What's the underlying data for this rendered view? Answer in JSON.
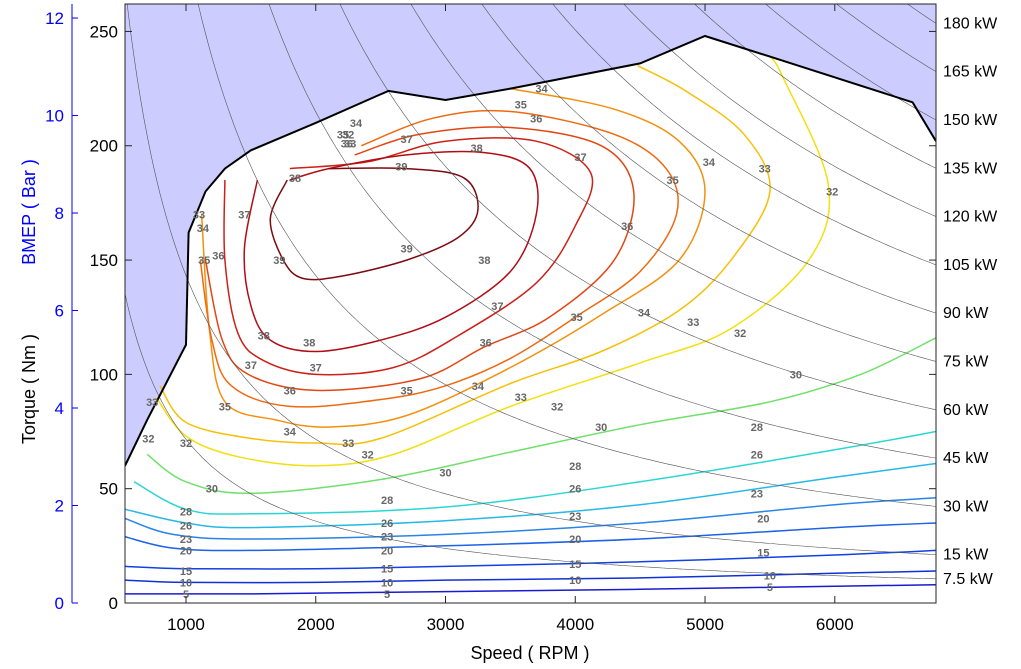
{
  "chart_data": {
    "type": "contour",
    "xlabel": "Speed ( RPM )",
    "ylabel": "Torque ( Nm )",
    "ylabel_left": "BMEP ( Bar )",
    "xlim": [
      530,
      6780
    ],
    "ylim": [
      0,
      262
    ],
    "x_ticks": [
      1000,
      2000,
      3000,
      4000,
      5000,
      6000
    ],
    "y_ticks": [
      0,
      50,
      100,
      150,
      200,
      250
    ],
    "bmep_ticks": [
      0,
      2,
      4,
      6,
      8,
      10,
      12
    ],
    "bmep_per_nm": 0.0469,
    "power_lines_kw": [
      "7.5",
      "15",
      "30",
      "45",
      "60",
      "75",
      "90",
      "105",
      "120",
      "135",
      "150",
      "165",
      "180"
    ],
    "power_unit": "kW",
    "wot_curve": [
      [
        530,
        60
      ],
      [
        700,
        80
      ],
      [
        1000,
        113
      ],
      [
        1020,
        162
      ],
      [
        1150,
        180
      ],
      [
        1300,
        190
      ],
      [
        1500,
        198
      ],
      [
        2000,
        210
      ],
      [
        2560,
        224
      ],
      [
        3000,
        220
      ],
      [
        3500,
        225
      ],
      [
        4500,
        236
      ],
      [
        5000,
        248
      ],
      [
        5500,
        239
      ],
      [
        6600,
        219
      ],
      [
        6780,
        202
      ]
    ],
    "efficiency_contours": [
      {
        "level": "5",
        "points": [
          [
            530,
            4
          ],
          [
            1500,
            4
          ],
          [
            3000,
            5
          ],
          [
            4500,
            6
          ],
          [
            6780,
            8
          ]
        ]
      },
      {
        "level": "10",
        "points": [
          [
            530,
            10
          ],
          [
            1000,
            9
          ],
          [
            2000,
            9
          ],
          [
            3000,
            10
          ],
          [
            4500,
            11
          ],
          [
            6000,
            13
          ],
          [
            6780,
            14
          ]
        ]
      },
      {
        "level": "15",
        "points": [
          [
            530,
            16
          ],
          [
            1000,
            15
          ],
          [
            2000,
            15
          ],
          [
            3000,
            16
          ],
          [
            4500,
            18
          ],
          [
            6000,
            21
          ],
          [
            6780,
            23
          ]
        ]
      },
      {
        "level": "20",
        "points": [
          [
            530,
            29
          ],
          [
            900,
            24
          ],
          [
            1500,
            23
          ],
          [
            3000,
            25
          ],
          [
            4500,
            28
          ],
          [
            6000,
            33
          ],
          [
            6780,
            35
          ]
        ]
      },
      {
        "level": "23",
        "points": [
          [
            530,
            37
          ],
          [
            900,
            30
          ],
          [
            1500,
            28
          ],
          [
            3000,
            30
          ],
          [
            4500,
            35
          ],
          [
            6000,
            43
          ],
          [
            6780,
            46
          ]
        ]
      },
      {
        "level": "26",
        "points": [
          [
            530,
            41
          ],
          [
            1000,
            35
          ],
          [
            1500,
            33
          ],
          [
            3000,
            36
          ],
          [
            4500,
            43
          ],
          [
            6000,
            55
          ],
          [
            6780,
            61
          ]
        ]
      },
      {
        "level": "28",
        "points": [
          [
            600,
            53
          ],
          [
            1000,
            41
          ],
          [
            1500,
            39
          ],
          [
            3000,
            42
          ],
          [
            4500,
            53
          ],
          [
            6000,
            67
          ],
          [
            6780,
            75
          ]
        ]
      },
      {
        "level": "30",
        "points": [
          [
            700,
            65
          ],
          [
            1000,
            53
          ],
          [
            1500,
            48
          ],
          [
            2500,
            54
          ],
          [
            3500,
            66
          ],
          [
            4500,
            78
          ],
          [
            5500,
            88
          ],
          [
            6200,
            100
          ],
          [
            6780,
            116
          ]
        ]
      },
      {
        "level": "32",
        "points": [
          [
            770,
            90
          ],
          [
            1000,
            73
          ],
          [
            1400,
            64
          ],
          [
            2000,
            60
          ],
          [
            2600,
            65
          ],
          [
            3500,
            86
          ],
          [
            4500,
            105
          ],
          [
            5200,
            120
          ],
          [
            5800,
            150
          ],
          [
            5950,
            183
          ],
          [
            5600,
            230
          ],
          [
            5500,
            239
          ]
        ]
      },
      {
        "level": "33",
        "points": [
          [
            800,
            95
          ],
          [
            1000,
            79
          ],
          [
            1500,
            72
          ],
          [
            2000,
            70
          ],
          [
            2500,
            72
          ],
          [
            3500,
            96
          ],
          [
            4200,
            110
          ],
          [
            4800,
            128
          ],
          [
            5200,
            150
          ],
          [
            5500,
            180
          ],
          [
            5300,
            205
          ],
          [
            4850,
            224
          ],
          [
            4480,
            235
          ]
        ]
      },
      {
        "level": "34",
        "points": [
          [
            1120,
            170
          ],
          [
            1180,
            120
          ],
          [
            1300,
            88
          ],
          [
            1700,
            80
          ],
          [
            2100,
            77
          ],
          [
            2700,
            82
          ],
          [
            3500,
            103
          ],
          [
            4200,
            126
          ],
          [
            4800,
            150
          ],
          [
            5000,
            180
          ],
          [
            4800,
            202
          ],
          [
            4300,
            216
          ],
          [
            3500,
            225
          ]
        ]
      },
      {
        "level": "35",
        "points": [
          [
            1110,
            150
          ],
          [
            1200,
            115
          ],
          [
            1350,
            95
          ],
          [
            1800,
            86
          ],
          [
            2500,
            89
          ],
          [
            3000,
            95
          ],
          [
            3500,
            107
          ],
          [
            4000,
            125
          ],
          [
            4500,
            145
          ],
          [
            4780,
            170
          ],
          [
            4700,
            190
          ],
          [
            4300,
            205
          ],
          [
            3500,
            215
          ],
          [
            2900,
            212
          ],
          [
            2350,
            200
          ]
        ]
      },
      {
        "level": "36",
        "points": [
          [
            1150,
            150
          ],
          [
            1280,
            115
          ],
          [
            1480,
            100
          ],
          [
            2000,
            93
          ],
          [
            2800,
            98
          ],
          [
            3300,
            112
          ],
          [
            3800,
            125
          ],
          [
            4300,
            150
          ],
          [
            4450,
            180
          ],
          [
            4200,
            200
          ],
          [
            3500,
            208
          ],
          [
            2800,
            205
          ],
          [
            2300,
            196
          ]
        ]
      },
      {
        "level": "37",
        "points": [
          [
            1300,
            185
          ],
          [
            1300,
            150
          ],
          [
            1400,
            118
          ],
          [
            1600,
            106
          ],
          [
            2000,
            100
          ],
          [
            2600,
            103
          ],
          [
            3100,
            117
          ],
          [
            3700,
            140
          ],
          [
            4000,
            165
          ],
          [
            4120,
            188
          ],
          [
            3700,
            202
          ],
          [
            3000,
            202
          ],
          [
            2400,
            193
          ],
          [
            1800,
            190
          ]
        ]
      },
      {
        "level": "38",
        "points": [
          [
            1550,
            185
          ],
          [
            1450,
            155
          ],
          [
            1500,
            130
          ],
          [
            1650,
            115
          ],
          [
            2000,
            110
          ],
          [
            2500,
            115
          ],
          [
            3000,
            125
          ],
          [
            3500,
            145
          ],
          [
            3700,
            170
          ],
          [
            3650,
            190
          ],
          [
            3300,
            197
          ],
          [
            2700,
            196
          ],
          [
            2100,
            190
          ],
          [
            1800,
            185
          ]
        ]
      },
      {
        "level": "39",
        "points": [
          [
            1780,
            185
          ],
          [
            1650,
            168
          ],
          [
            1750,
            150
          ],
          [
            1900,
            142
          ],
          [
            2200,
            143
          ],
          [
            2700,
            150
          ],
          [
            3100,
            160
          ],
          [
            3250,
            172
          ],
          [
            3140,
            186
          ],
          [
            2700,
            190
          ],
          [
            2100,
            190
          ]
        ]
      }
    ],
    "contour_colors": {
      "5": "#1a1ad0",
      "10": "#1030d8",
      "15": "#1240e6",
      "20": "#1e62e8",
      "23": "#2884e6",
      "26": "#28b8e6",
      "28": "#2ad6d4",
      "30": "#70e06c",
      "32": "#f2e010",
      "33": "#f6c00a",
      "34": "#f3900e",
      "35": "#ee6a10",
      "36": "#e34612",
      "37": "#cc2018",
      "38": "#b00c16",
      "39": "#7a0a10"
    },
    "contour_label_positions": [
      [
        "5",
        1000,
        4
      ],
      [
        "5",
        2550,
        4
      ],
      [
        "5",
        5500,
        7
      ],
      [
        "10",
        1000,
        9
      ],
      [
        "10",
        2550,
        9
      ],
      [
        "10",
        4000,
        10
      ],
      [
        "10",
        5500,
        12
      ],
      [
        "15",
        1000,
        14
      ],
      [
        "15",
        2550,
        15
      ],
      [
        "15",
        4000,
        17
      ],
      [
        "15",
        5450,
        22
      ],
      [
        "20",
        1000,
        23
      ],
      [
        "20",
        2550,
        23
      ],
      [
        "20",
        4000,
        28
      ],
      [
        "20",
        5450,
        37
      ],
      [
        "23",
        1000,
        28
      ],
      [
        "23",
        2550,
        29
      ],
      [
        "23",
        4000,
        38
      ],
      [
        "23",
        5400,
        48
      ],
      [
        "26",
        1000,
        34
      ],
      [
        "26",
        2550,
        35
      ],
      [
        "26",
        4000,
        50
      ],
      [
        "26",
        5400,
        65
      ],
      [
        "28",
        1000,
        40
      ],
      [
        "28",
        2550,
        45
      ],
      [
        "28",
        4000,
        60
      ],
      [
        "28",
        5400,
        77
      ],
      [
        "30",
        1200,
        50
      ],
      [
        "30",
        3000,
        57
      ],
      [
        "30",
        4200,
        77
      ],
      [
        "30",
        5700,
        100
      ],
      [
        "32",
        710,
        72
      ],
      [
        "32",
        1000,
        70
      ],
      [
        "32",
        2400,
        65
      ],
      [
        "32",
        3860,
        86
      ],
      [
        "32",
        5270,
        118
      ],
      [
        "32",
        5980,
        180
      ],
      [
        "32",
        2250,
        205
      ],
      [
        "33",
        740,
        88
      ],
      [
        "33",
        1100,
        170
      ],
      [
        "33",
        2250,
        70
      ],
      [
        "33",
        3580,
        90
      ],
      [
        "33",
        4910,
        123
      ],
      [
        "33",
        5460,
        190
      ],
      [
        "33",
        2265,
        201
      ],
      [
        "34",
        1130,
        164
      ],
      [
        "34",
        1800,
        75
      ],
      [
        "34",
        3250,
        95
      ],
      [
        "34",
        4530,
        127
      ],
      [
        "34",
        5030,
        193
      ],
      [
        "34",
        3740,
        225
      ],
      [
        "34",
        2310,
        210
      ],
      [
        "35",
        1140,
        150
      ],
      [
        "35",
        1300,
        86
      ],
      [
        "35",
        2700,
        93
      ],
      [
        "35",
        4010,
        125
      ],
      [
        "35",
        4750,
        185
      ],
      [
        "35",
        3580,
        218
      ],
      [
        "35",
        2210,
        205
      ],
      [
        "36",
        1250,
        152
      ],
      [
        "36",
        1800,
        93
      ],
      [
        "36",
        3310,
        114
      ],
      [
        "36",
        4400,
        165
      ],
      [
        "36",
        3700,
        212
      ],
      [
        "36",
        2240,
        201
      ],
      [
        "37",
        1450,
        170
      ],
      [
        "37",
        1500,
        104
      ],
      [
        "37",
        2000,
        103
      ],
      [
        "37",
        3400,
        130
      ],
      [
        "37",
        4040,
        195
      ],
      [
        "37",
        2700,
        203
      ],
      [
        "38",
        1600,
        117
      ],
      [
        "38",
        1950,
        114
      ],
      [
        "38",
        1840,
        186
      ],
      [
        "38",
        3300,
        150
      ],
      [
        "38",
        3240,
        199
      ],
      [
        "39",
        1720,
        150
      ],
      [
        "39",
        2700,
        155
      ],
      [
        "39",
        2660,
        191
      ]
    ]
  }
}
